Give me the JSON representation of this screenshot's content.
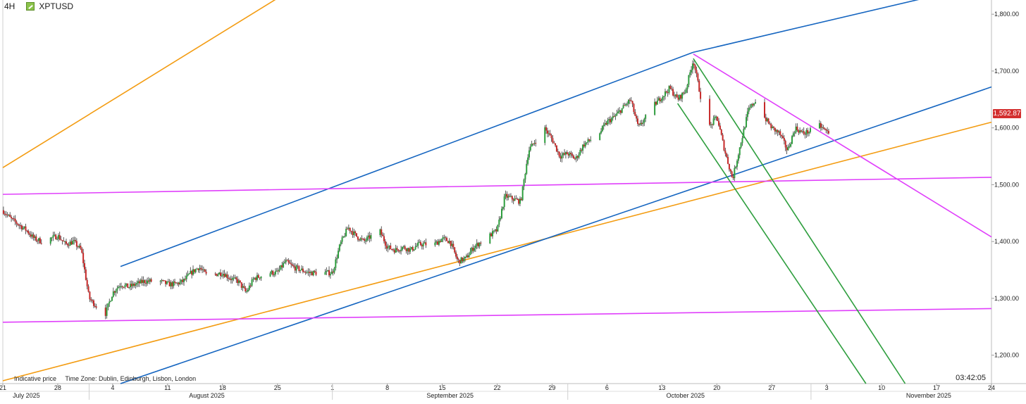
{
  "header": {
    "timeframe": "4H",
    "symbol": "XPTUSD",
    "icon": "instrument-icon"
  },
  "footer": {
    "note": "Indicative price",
    "timezone": "Time Zone: Dublin, Edinburgh, Lisbon, London",
    "clock": "03:42:05"
  },
  "last_price": {
    "label": "1,592.87",
    "color": "#d32f2f"
  },
  "chart_data": {
    "type": "candlestick",
    "title": "",
    "xlabel": "",
    "ylabel": "",
    "ylim": [
      1150,
      1825
    ],
    "y_ticks": [
      {
        "value": 1200,
        "label": "1,200.00"
      },
      {
        "value": 1300,
        "label": "1,300.00"
      },
      {
        "value": 1400,
        "label": "1,400.00"
      },
      {
        "value": 1500,
        "label": "1,500.00"
      },
      {
        "value": 1600,
        "label": "1,600.00"
      },
      {
        "value": 1700,
        "label": "1,700.00"
      },
      {
        "value": 1800,
        "label": "1,800.00"
      }
    ],
    "x_range": [
      "2025-07-21",
      "2025-11-24"
    ],
    "x_ticks": [
      {
        "date": "2025-07-21",
        "label": "21"
      },
      {
        "date": "2025-07-28",
        "label": "28"
      },
      {
        "date": "2025-08-04",
        "label": "4"
      },
      {
        "date": "2025-08-11",
        "label": "11"
      },
      {
        "date": "2025-08-18",
        "label": "18"
      },
      {
        "date": "2025-08-25",
        "label": "25"
      },
      {
        "date": "2025-09-01",
        "label": "1"
      },
      {
        "date": "2025-09-08",
        "label": "8"
      },
      {
        "date": "2025-09-15",
        "label": "15"
      },
      {
        "date": "2025-09-22",
        "label": "22"
      },
      {
        "date": "2025-09-29",
        "label": "29"
      },
      {
        "date": "2025-10-06",
        "label": "6"
      },
      {
        "date": "2025-10-13",
        "label": "13"
      },
      {
        "date": "2025-10-20",
        "label": "20"
      },
      {
        "date": "2025-10-27",
        "label": "27"
      },
      {
        "date": "2025-11-03",
        "label": "3"
      },
      {
        "date": "2025-11-10",
        "label": "10"
      },
      {
        "date": "2025-11-17",
        "label": "17"
      },
      {
        "date": "2025-11-24",
        "label": "24"
      }
    ],
    "months": [
      {
        "label": "July 2025",
        "center": "2025-07-24",
        "start": "2025-07-21"
      },
      {
        "label": "August 2025",
        "center": "2025-08-16",
        "start": "2025-08-01"
      },
      {
        "label": "September 2025",
        "center": "2025-09-16",
        "start": "2025-09-01"
      },
      {
        "label": "October 2025",
        "center": "2025-10-16",
        "start": "2025-10-01"
      },
      {
        "label": "November 2025",
        "center": "2025-11-16",
        "start": "2025-11-01"
      }
    ],
    "up_color": "#2e9e3e",
    "down_color": "#c62828",
    "price_path": [
      [
        "2025-07-21",
        1455
      ],
      [
        "2025-07-22",
        1440
      ],
      [
        "2025-07-23",
        1430
      ],
      [
        "2025-07-24",
        1420
      ],
      [
        "2025-07-25",
        1405
      ],
      [
        "2025-07-26",
        1400
      ],
      [
        "2025-07-28",
        1410
      ],
      [
        "2025-07-29",
        1395
      ],
      [
        "2025-07-30",
        1400
      ],
      [
        "2025-07-31",
        1385
      ],
      [
        "2025-08-01",
        1300
      ],
      [
        "2025-08-02",
        1285
      ],
      [
        "2025-08-03",
        1270
      ],
      [
        "2025-08-04",
        1310
      ],
      [
        "2025-08-05",
        1325
      ],
      [
        "2025-08-06",
        1320
      ],
      [
        "2025-08-07",
        1325
      ],
      [
        "2025-08-08",
        1330
      ],
      [
        "2025-08-10",
        1330
      ],
      [
        "2025-08-11",
        1325
      ],
      [
        "2025-08-12",
        1325
      ],
      [
        "2025-08-13",
        1330
      ],
      [
        "2025-08-14",
        1345
      ],
      [
        "2025-08-15",
        1355
      ],
      [
        "2025-08-16",
        1340
      ],
      [
        "2025-08-18",
        1345
      ],
      [
        "2025-08-19",
        1335
      ],
      [
        "2025-08-20",
        1330
      ],
      [
        "2025-08-21",
        1310
      ],
      [
        "2025-08-22",
        1335
      ],
      [
        "2025-08-24",
        1345
      ],
      [
        "2025-08-25",
        1345
      ],
      [
        "2025-08-26",
        1365
      ],
      [
        "2025-08-27",
        1355
      ],
      [
        "2025-08-28",
        1350
      ],
      [
        "2025-08-29",
        1345
      ],
      [
        "2025-08-31",
        1345
      ],
      [
        "2025-09-01",
        1345
      ],
      [
        "2025-09-02",
        1395
      ],
      [
        "2025-09-03",
        1425
      ],
      [
        "2025-09-04",
        1410
      ],
      [
        "2025-09-05",
        1400
      ],
      [
        "2025-09-07",
        1420
      ],
      [
        "2025-09-08",
        1390
      ],
      [
        "2025-09-09",
        1385
      ],
      [
        "2025-09-10",
        1390
      ],
      [
        "2025-09-11",
        1385
      ],
      [
        "2025-09-12",
        1395
      ],
      [
        "2025-09-14",
        1395
      ],
      [
        "2025-09-15",
        1405
      ],
      [
        "2025-09-16",
        1400
      ],
      [
        "2025-09-17",
        1365
      ],
      [
        "2025-09-18",
        1370
      ],
      [
        "2025-09-19",
        1390
      ],
      [
        "2025-09-21",
        1410
      ],
      [
        "2025-09-22",
        1420
      ],
      [
        "2025-09-23",
        1480
      ],
      [
        "2025-09-24",
        1475
      ],
      [
        "2025-09-25",
        1470
      ],
      [
        "2025-09-26",
        1560
      ],
      [
        "2025-09-28",
        1600
      ],
      [
        "2025-09-29",
        1580
      ],
      [
        "2025-09-30",
        1550
      ],
      [
        "2025-10-01",
        1555
      ],
      [
        "2025-10-02",
        1545
      ],
      [
        "2025-10-03",
        1570
      ],
      [
        "2025-10-05",
        1590
      ],
      [
        "2025-10-06",
        1610
      ],
      [
        "2025-10-07",
        1620
      ],
      [
        "2025-10-08",
        1635
      ],
      [
        "2025-10-09",
        1650
      ],
      [
        "2025-10-10",
        1600
      ],
      [
        "2025-10-12",
        1640
      ],
      [
        "2025-10-13",
        1655
      ],
      [
        "2025-10-14",
        1670
      ],
      [
        "2025-10-15",
        1650
      ],
      [
        "2025-10-16",
        1665
      ],
      [
        "2025-10-17",
        1720
      ],
      [
        "2025-10-18",
        1650
      ],
      [
        "2025-10-19",
        1600
      ],
      [
        "2025-10-20",
        1620
      ],
      [
        "2025-10-21",
        1560
      ],
      [
        "2025-10-22",
        1510
      ],
      [
        "2025-10-23",
        1570
      ],
      [
        "2025-10-24",
        1630
      ],
      [
        "2025-10-25",
        1650
      ],
      [
        "2025-10-26",
        1620
      ],
      [
        "2025-10-27",
        1600
      ],
      [
        "2025-10-28",
        1590
      ],
      [
        "2025-10-29",
        1560
      ],
      [
        "2025-10-30",
        1600
      ],
      [
        "2025-10-31",
        1590
      ],
      [
        "2025-11-01",
        1595
      ],
      [
        "2025-11-02",
        1605
      ],
      [
        "2025-11-03",
        1593
      ]
    ],
    "trendlines": [
      {
        "color": "#f39c12",
        "from": [
          "2025-07-21",
          1530
        ],
        "to": [
          "2025-08-25",
          1828
        ]
      },
      {
        "color": "#f39c12",
        "from": [
          "2025-07-21",
          1155
        ],
        "to": [
          "2025-11-24",
          1610
        ]
      },
      {
        "color": "#1565c0",
        "from": [
          "2025-08-05",
          1356
        ],
        "to": [
          "2025-10-17",
          1733
        ]
      },
      {
        "color": "#1565c0",
        "from": [
          "2025-10-17",
          1733
        ],
        "to": [
          "2025-11-16",
          1830
        ]
      },
      {
        "color": "#1565c0",
        "from": [
          "2025-08-05",
          1150
        ],
        "to": [
          "2025-11-24",
          1672
        ]
      },
      {
        "color": "#e040fb",
        "from": [
          "2025-07-21",
          1483
        ],
        "to": [
          "2025-11-24",
          1513
        ]
      },
      {
        "color": "#e040fb",
        "from": [
          "2025-07-21",
          1258
        ],
        "to": [
          "2025-11-24",
          1282
        ]
      },
      {
        "color": "#e040fb",
        "from": [
          "2025-10-17",
          1730
        ],
        "to": [
          "2025-11-24",
          1408
        ]
      },
      {
        "color": "#2e9e3e",
        "from": [
          "2025-10-15",
          1643
        ],
        "to": [
          "2025-11-08",
          1150
        ]
      },
      {
        "color": "#2e9e3e",
        "from": [
          "2025-10-17",
          1722
        ],
        "to": [
          "2025-11-13",
          1150
        ]
      }
    ]
  }
}
